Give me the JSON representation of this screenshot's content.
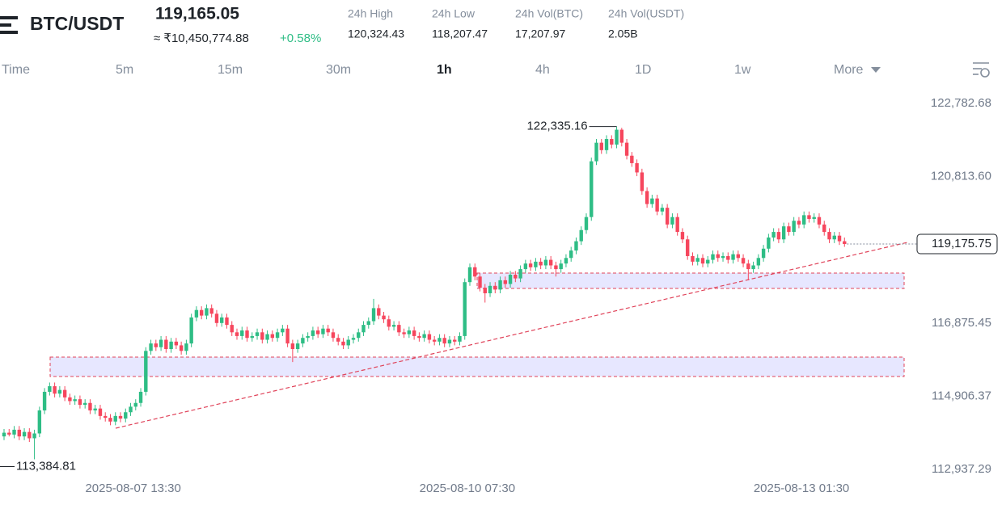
{
  "header": {
    "symbol": "BTC/USDT",
    "price": "119,165.05",
    "fiat_price": "≈ ₹10,450,774.88",
    "change": "+0.58%",
    "stats": [
      {
        "label": "24h High",
        "value": "120,324.43"
      },
      {
        "label": "24h Low",
        "value": "118,207.47"
      },
      {
        "label": "24h Vol(BTC)",
        "value": "17,207.97"
      },
      {
        "label": "24h Vol(USDT)",
        "value": "2.05B"
      }
    ]
  },
  "timeframes": [
    "Time",
    "5m",
    "15m",
    "30m",
    "1h",
    "4h",
    "1D",
    "1w",
    "More"
  ],
  "chart_data": {
    "type": "candlestick",
    "up_color": "#2ebd85",
    "down_color": "#f6465d",
    "grid": false,
    "xlim": [
      -0.8,
      197.9
    ],
    "xticks": [
      {
        "value": 25.5,
        "label": "2025-08-07 13:30"
      },
      {
        "value": 91.5,
        "label": "2025-08-10 07:30"
      },
      {
        "value": 157.5,
        "label": "2025-08-13 01:30"
      }
    ],
    "ylim": [
      112917,
      123348
    ],
    "yticks": [
      {
        "value": 122782.68,
        "label": "122,782.68"
      },
      {
        "value": 120813.6,
        "label": "120,813.60"
      },
      {
        "value": 116875.45,
        "label": "116,875.45"
      },
      {
        "value": 114906.37,
        "label": "114,906.37"
      },
      {
        "value": 112937.29,
        "label": "112,937.29"
      }
    ],
    "high_marker": {
      "index": 121,
      "value": 122335.16,
      "label": "122,335.16"
    },
    "low_marker": {
      "index": 6,
      "value": 113384.81,
      "label": "113,384.81"
    },
    "last_price": {
      "value": 119175.75,
      "label": "119,175.75"
    },
    "open": [
      114000,
      114100,
      114050,
      114180,
      114000,
      114120,
      113950,
      114080,
      114700,
      115200,
      115350,
      115150,
      115250,
      115050,
      114950,
      115000,
      114850,
      114900,
      114700,
      114750,
      114550,
      114500,
      114400,
      114550,
      114480,
      114650,
      114800,
      114900,
      115200,
      116300,
      116500,
      116400,
      116600,
      116350,
      116550,
      116450,
      116300,
      116500,
      117200,
      117400,
      117250,
      117450,
      117300,
      117050,
      117200,
      117000,
      116800,
      116700,
      116850,
      116650,
      116700,
      116800,
      116600,
      116750,
      116650,
      116800,
      116900,
      116500,
      116350,
      116500,
      116650,
      116700,
      116850,
      116750,
      116900,
      116800,
      116650,
      116550,
      116450,
      116600,
      116650,
      116800,
      117000,
      117100,
      117450,
      117250,
      117150,
      116950,
      117000,
      116800,
      116750,
      116850,
      116700,
      116650,
      116750,
      116600,
      116550,
      116650,
      116500,
      116600,
      116550,
      116700,
      118150,
      118550,
      118300,
      118000,
      117850,
      118050,
      117950,
      118200,
      118100,
      118350,
      118250,
      118500,
      118650,
      118550,
      118700,
      118600,
      118750,
      118600,
      118500,
      118650,
      118800,
      119000,
      119250,
      119550,
      119900,
      121400,
      121900,
      121700,
      122000,
      121850,
      122250,
      121900,
      121550,
      121350,
      121100,
      120600,
      120250,
      120400,
      120050,
      120150,
      119700,
      119900,
      119500,
      119300,
      118850,
      118700,
      118800,
      118650,
      118750,
      118900,
      118800,
      118850,
      118750,
      118900,
      118800,
      118650,
      118500,
      118600,
      118800,
      119050,
      119350,
      119500,
      119300,
      119650,
      119500,
      119800,
      119700,
      119950,
      119850,
      119900,
      119700,
      119500,
      119300,
      119400,
      119250
    ],
    "high": [
      114200,
      114200,
      114280,
      114280,
      114220,
      114220,
      114180,
      114800,
      115300,
      115450,
      115450,
      115350,
      115350,
      115150,
      115100,
      115100,
      115000,
      115000,
      114850,
      114850,
      114650,
      114600,
      114650,
      114650,
      114750,
      114900,
      115000,
      115300,
      116400,
      116600,
      116600,
      116700,
      116700,
      116650,
      116650,
      116550,
      116600,
      117300,
      117500,
      117500,
      117550,
      117550,
      117400,
      117300,
      117300,
      117100,
      116900,
      116950,
      116950,
      116800,
      116900,
      116900,
      116850,
      116850,
      116900,
      117000,
      117000,
      116600,
      116600,
      116750,
      116800,
      116950,
      116950,
      117000,
      117000,
      116900,
      116750,
      116650,
      116700,
      116750,
      116900,
      117100,
      117200,
      117700,
      117550,
      117350,
      117250,
      117100,
      117100,
      116900,
      116950,
      116950,
      116800,
      116850,
      116850,
      116700,
      116750,
      116750,
      116700,
      116700,
      116800,
      118250,
      118650,
      118650,
      118400,
      118100,
      118150,
      118150,
      118300,
      118300,
      118450,
      118450,
      118600,
      118750,
      118750,
      118800,
      118800,
      118850,
      118850,
      118700,
      118750,
      118900,
      119100,
      119350,
      119650,
      120000,
      121500,
      122000,
      122000,
      122100,
      122100,
      122335.16,
      122300,
      122000,
      121650,
      121450,
      121200,
      120700,
      120500,
      120500,
      120250,
      120250,
      120000,
      120000,
      119600,
      119400,
      118950,
      118900,
      118900,
      118850,
      119000,
      119000,
      118950,
      118950,
      119000,
      119000,
      118900,
      118750,
      118700,
      118900,
      119150,
      119450,
      119600,
      119600,
      119750,
      119750,
      119900,
      119900,
      120050,
      120050,
      120000,
      120000,
      119800,
      119600,
      119500,
      119500,
      119350
    ],
    "low": [
      113900,
      114000,
      113950,
      113900,
      113900,
      113850,
      113384.81,
      113980,
      114600,
      115100,
      115050,
      115050,
      114950,
      114850,
      114850,
      114750,
      114750,
      114600,
      114600,
      114450,
      114400,
      114300,
      114300,
      114380,
      114380,
      114550,
      114700,
      114800,
      115100,
      116200,
      116300,
      116300,
      116250,
      116250,
      116350,
      116200,
      116200,
      116400,
      117100,
      117150,
      117150,
      117200,
      116950,
      116950,
      116900,
      116700,
      116600,
      116600,
      116550,
      116550,
      116600,
      116500,
      116500,
      116550,
      116550,
      116700,
      116400,
      116000,
      116250,
      116400,
      116550,
      116600,
      116650,
      116650,
      116700,
      116550,
      116450,
      116350,
      116350,
      116500,
      116550,
      116700,
      116900,
      117000,
      117150,
      117050,
      116850,
      116850,
      116700,
      116650,
      116650,
      116600,
      116550,
      116550,
      116500,
      116450,
      116450,
      116400,
      116400,
      116450,
      116450,
      116600,
      118050,
      118200,
      117900,
      117600,
      117750,
      117850,
      117850,
      118000,
      118000,
      118150,
      118150,
      118400,
      118450,
      118450,
      118500,
      118500,
      118500,
      118300,
      118400,
      118550,
      118700,
      118900,
      119150,
      119450,
      119800,
      121300,
      121600,
      121600,
      121750,
      121750,
      121800,
      121450,
      121250,
      121000,
      120500,
      120150,
      120150,
      119950,
      119950,
      119600,
      119600,
      119400,
      119200,
      118750,
      118600,
      118600,
      118550,
      118550,
      118650,
      118700,
      118700,
      118650,
      118650,
      118700,
      118550,
      118200,
      118400,
      118500,
      118700,
      118950,
      119250,
      119200,
      119200,
      119400,
      119400,
      119600,
      119600,
      119750,
      119750,
      119600,
      119400,
      119200,
      119200,
      119150,
      119100
    ],
    "close": [
      114100,
      114050,
      114180,
      114000,
      114120,
      113950,
      114080,
      114700,
      115200,
      115350,
      115150,
      115250,
      115050,
      114950,
      115000,
      114850,
      114900,
      114700,
      114750,
      114550,
      114500,
      114400,
      114550,
      114480,
      114650,
      114800,
      114900,
      115200,
      116300,
      116500,
      116400,
      116600,
      116350,
      116550,
      116450,
      116300,
      116500,
      117200,
      117400,
      117250,
      117450,
      117300,
      117050,
      117200,
      117000,
      116800,
      116700,
      116850,
      116650,
      116700,
      116800,
      116600,
      116750,
      116650,
      116800,
      116900,
      116500,
      116350,
      116500,
      116650,
      116700,
      116850,
      116750,
      116900,
      116800,
      116650,
      116550,
      116450,
      116600,
      116650,
      116800,
      117000,
      117100,
      117450,
      117250,
      117150,
      116950,
      117000,
      116800,
      116750,
      116850,
      116700,
      116650,
      116750,
      116600,
      116550,
      116650,
      116500,
      116600,
      116550,
      116700,
      118150,
      118550,
      118300,
      118000,
      117850,
      118050,
      117950,
      118200,
      118100,
      118350,
      118250,
      118500,
      118650,
      118550,
      118700,
      118600,
      118750,
      118600,
      118500,
      118650,
      118800,
      119000,
      119250,
      119550,
      119900,
      121400,
      121900,
      121700,
      122000,
      121850,
      122250,
      121900,
      121550,
      121350,
      121100,
      120600,
      120250,
      120400,
      120050,
      120150,
      119700,
      119900,
      119500,
      119300,
      118850,
      118700,
      118800,
      118650,
      118750,
      118900,
      118800,
      118850,
      118750,
      118900,
      118800,
      118650,
      118500,
      118600,
      118800,
      119050,
      119350,
      119500,
      119300,
      119650,
      119500,
      119800,
      119700,
      119950,
      119850,
      119900,
      119700,
      119500,
      119300,
      119400,
      119250,
      119175.75
    ]
  }
}
